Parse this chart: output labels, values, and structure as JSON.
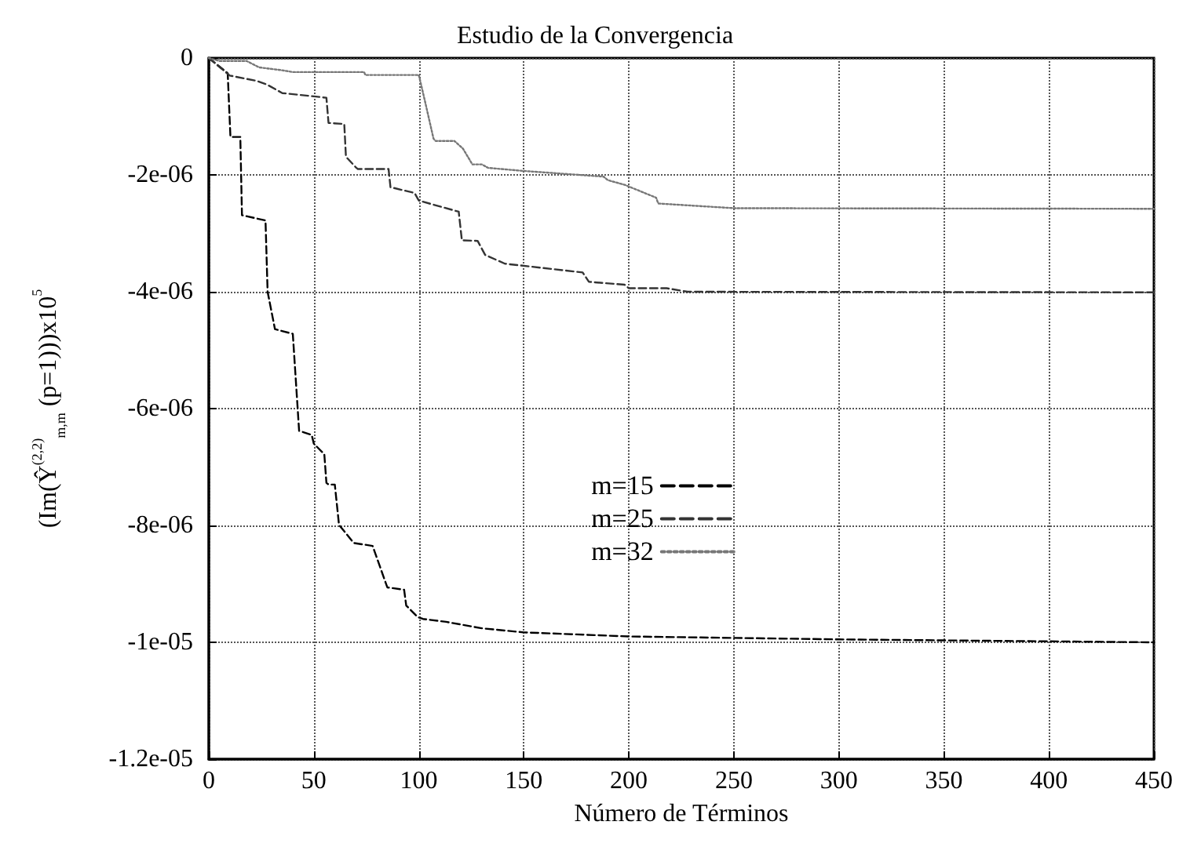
{
  "chart_data": {
    "type": "line",
    "title": "Estudio de la Convergencia",
    "xlabel": "Número de Términos",
    "ylabel": "(Im(Ŷ$^{(2,2)}$$_{m,m}$ (p=1)))x10$^{5}$",
    "xlim": [
      0,
      450
    ],
    "xticks": [
      0,
      50,
      100,
      150,
      200,
      250,
      300,
      350,
      400,
      450
    ],
    "ylim": [
      -1.2e-05,
      0
    ],
    "yticks": [
      {
        "value": -1.2e-05,
        "label": "-1.2e-05"
      },
      {
        "value": -1e-05,
        "label": "-1e-05"
      },
      {
        "value": -8e-06,
        "label": "-8e-06"
      },
      {
        "value": -6e-06,
        "label": "-6e-06"
      },
      {
        "value": -4e-06,
        "label": "-4e-06"
      },
      {
        "value": -2e-06,
        "label": "-2e-06"
      },
      0
    ],
    "grid": true,
    "legend": "center",
    "marker": "none",
    "series": [
      {
        "name": "m=15",
        "color": "#000000",
        "line_style": "dashed",
        "x": [
          0,
          9,
          10.3,
          15,
          15.8,
          27,
          28,
          31.5,
          40,
          43,
          49,
          50,
          55,
          56,
          57,
          60,
          62,
          69,
          78,
          85,
          93,
          94,
          99.5,
          102,
          113,
          130,
          150,
          200,
          300,
          450
        ],
        "values": [
          0,
          -2.6e-07,
          -1.35e-06,
          -1.35e-06,
          -2.69e-06,
          -2.78e-06,
          -4e-06,
          -4.64e-06,
          -4.72e-06,
          -6.38e-06,
          -6.45e-06,
          -6.6e-06,
          -6.78e-06,
          -7.27e-06,
          -7.3e-06,
          -7.3e-06,
          -7.99e-06,
          -8.3e-06,
          -8.35e-06,
          -9.06e-06,
          -9.1e-06,
          -9.37e-06,
          -9.57e-06,
          -9.6e-06,
          -9.65e-06,
          -9.76e-06,
          -9.83e-06,
          -9.9e-06,
          -9.95e-06,
          -1e-05
        ]
      },
      {
        "name": "m=25",
        "color": "#333333",
        "line_style": "dashed",
        "x": [
          0,
          10,
          22.7,
          27.5,
          35,
          51,
          56,
          57,
          64.5,
          65.3,
          70,
          71,
          85.6,
          86.5,
          98,
          100,
          119,
          120.5,
          128,
          131.6,
          141,
          178,
          181,
          198,
          200,
          218,
          228,
          450
        ],
        "values": [
          0,
          -3e-07,
          -3.9e-07,
          -4.5e-07,
          -6e-07,
          -6.6e-07,
          -6.8e-07,
          -1.11e-06,
          -1.13e-06,
          -1.69e-06,
          -1.87e-06,
          -1.9e-06,
          -1.9e-06,
          -2.21e-06,
          -2.31e-06,
          -2.44e-06,
          -2.63e-06,
          -3.12e-06,
          -3.13e-06,
          -3.37e-06,
          -3.52e-06,
          -3.67e-06,
          -3.83e-06,
          -3.88e-06,
          -3.94e-06,
          -3.94e-06,
          -4e-06,
          -4.01e-06
        ]
      },
      {
        "name": "m=32",
        "color": "#777777",
        "line_style": "dotted",
        "x": [
          0,
          5,
          18,
          24,
          35,
          40,
          74,
          74.5,
          100,
          103,
          107,
          108,
          117,
          121,
          125.5,
          130,
          133,
          149,
          188,
          190,
          198,
          213,
          214,
          250,
          450
        ],
        "values": [
          0,
          -5e-08,
          -5e-08,
          -1.6e-07,
          -2.1e-07,
          -2.4e-07,
          -2.4e-07,
          -2.9e-07,
          -2.9e-07,
          -7.5e-07,
          -1.38e-06,
          -1.42e-06,
          -1.42e-06,
          -1.55e-06,
          -1.82e-06,
          -1.82e-06,
          -1.88e-06,
          -1.93e-06,
          -2.03e-06,
          -2.09e-06,
          -2.17e-06,
          -2.39e-06,
          -2.49e-06,
          -2.57e-06,
          -2.58e-06
        ]
      }
    ]
  }
}
